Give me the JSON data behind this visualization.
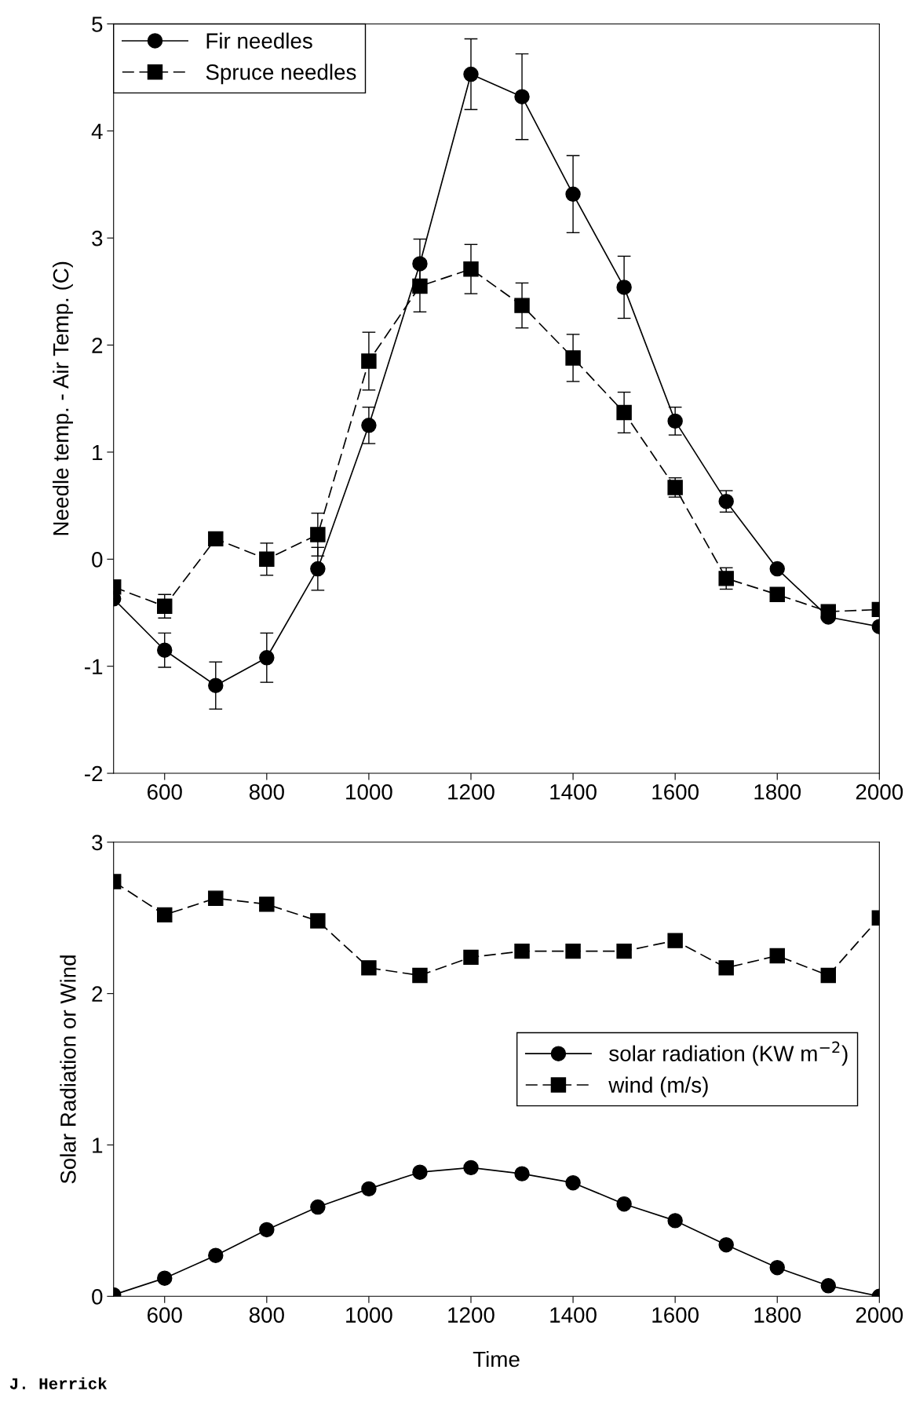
{
  "chart_data": [
    {
      "type": "line",
      "ylabel": "Needle temp. - Air Temp. (C)",
      "x": [
        500,
        600,
        700,
        800,
        900,
        1000,
        1100,
        1200,
        1300,
        1400,
        1500,
        1600,
        1700,
        1800,
        1900,
        2000
      ],
      "xlim": [
        500,
        2000
      ],
      "xticks": [
        600,
        800,
        1000,
        1200,
        1400,
        1600,
        1800,
        2000
      ],
      "ylim": [
        -2,
        5
      ],
      "yticks": [
        -2,
        -1,
        0,
        1,
        2,
        3,
        4,
        5
      ],
      "grid": false,
      "legend": "top left",
      "series": [
        {
          "name": "Fir needles",
          "color": "#000000",
          "marker": "circle",
          "line_style": "solid",
          "values": [
            -0.37,
            -0.85,
            -1.18,
            -0.92,
            -0.09,
            1.25,
            2.76,
            4.53,
            4.32,
            3.41,
            2.54,
            1.29,
            0.54,
            -0.09,
            -0.54,
            -0.63
          ],
          "errors": [
            null,
            0.16,
            0.22,
            0.23,
            0.2,
            0.17,
            0.23,
            0.33,
            0.4,
            0.36,
            0.29,
            0.13,
            0.1,
            null,
            null,
            null
          ]
        },
        {
          "name": "Spruce needles",
          "color": "#000000",
          "marker": "square",
          "line_style": "dashed",
          "values": [
            -0.26,
            -0.44,
            0.19,
            0.0,
            0.23,
            1.85,
            2.55,
            2.71,
            2.37,
            1.88,
            1.37,
            0.67,
            -0.18,
            -0.33,
            -0.49,
            -0.47
          ],
          "errors": [
            null,
            0.11,
            null,
            0.15,
            0.2,
            0.27,
            0.24,
            0.23,
            0.21,
            0.22,
            0.19,
            0.09,
            0.1,
            null,
            null,
            null
          ]
        }
      ]
    },
    {
      "type": "line",
      "xlabel": "Time",
      "ylabel": "Solar Radiation or Wind",
      "x": [
        500,
        600,
        700,
        800,
        900,
        1000,
        1100,
        1200,
        1300,
        1400,
        1500,
        1600,
        1700,
        1800,
        1900,
        2000
      ],
      "xlim": [
        500,
        2000
      ],
      "xticks": [
        600,
        800,
        1000,
        1200,
        1400,
        1600,
        1800,
        2000
      ],
      "ylim": [
        0,
        3
      ],
      "yticks": [
        0,
        1,
        2,
        3
      ],
      "grid": false,
      "legend": "right",
      "annotations": [
        "J. Herrick"
      ],
      "series": [
        {
          "name": "solar radiation (KW m$^{−2}$)",
          "color": "#000000",
          "marker": "circle",
          "line_style": "solid",
          "values": [
            0.01,
            0.12,
            0.27,
            0.44,
            0.59,
            0.71,
            0.82,
            0.85,
            0.81,
            0.75,
            0.61,
            0.5,
            0.34,
            0.19,
            0.07,
            0.0
          ]
        },
        {
          "name": "wind (m/s)",
          "color": "#000000",
          "marker": "square",
          "line_style": "dashed",
          "values": [
            2.74,
            2.52,
            2.63,
            2.59,
            2.48,
            2.17,
            2.12,
            2.24,
            2.28,
            2.28,
            2.28,
            2.35,
            2.17,
            2.25,
            2.12,
            2.5
          ]
        }
      ]
    }
  ]
}
